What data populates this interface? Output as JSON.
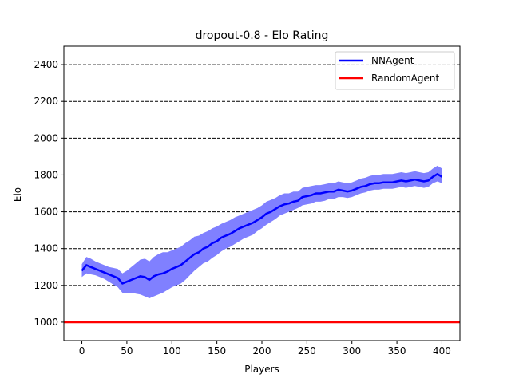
{
  "chart_data": {
    "type": "line",
    "title": "dropout-0.8 - Elo Rating",
    "xlabel": "Players",
    "ylabel": "Elo",
    "xlim": [
      -20,
      420
    ],
    "ylim": [
      900,
      2500
    ],
    "xticks": [
      0,
      50,
      100,
      150,
      200,
      250,
      300,
      350,
      400
    ],
    "yticks": [
      1000,
      1200,
      1400,
      1600,
      1800,
      2000,
      2200,
      2400
    ],
    "grid": {
      "axis": "y",
      "style": "dashed",
      "color": "#000000"
    },
    "legend": {
      "position": "top-right"
    },
    "series": [
      {
        "name": "NNAgent",
        "color": "#0000ff",
        "band_color": "#8080ff",
        "x": [
          0,
          5,
          10,
          15,
          20,
          25,
          30,
          35,
          40,
          45,
          50,
          55,
          60,
          65,
          70,
          75,
          80,
          85,
          90,
          95,
          100,
          105,
          110,
          115,
          120,
          125,
          130,
          135,
          140,
          145,
          150,
          155,
          160,
          165,
          170,
          175,
          180,
          185,
          190,
          195,
          200,
          205,
          210,
          215,
          220,
          225,
          230,
          235,
          240,
          245,
          250,
          255,
          260,
          265,
          270,
          275,
          280,
          285,
          290,
          295,
          300,
          305,
          310,
          315,
          320,
          325,
          330,
          335,
          340,
          345,
          350,
          355,
          360,
          365,
          370,
          375,
          380,
          385,
          390,
          395,
          400
        ],
        "y": [
          1280,
          1310,
          1300,
          1290,
          1280,
          1270,
          1260,
          1250,
          1240,
          1210,
          1220,
          1230,
          1240,
          1250,
          1245,
          1230,
          1250,
          1260,
          1265,
          1275,
          1290,
          1300,
          1310,
          1330,
          1350,
          1370,
          1380,
          1400,
          1410,
          1430,
          1440,
          1460,
          1470,
          1480,
          1495,
          1510,
          1520,
          1530,
          1540,
          1555,
          1570,
          1590,
          1600,
          1615,
          1630,
          1640,
          1645,
          1655,
          1660,
          1680,
          1685,
          1690,
          1700,
          1700,
          1705,
          1710,
          1710,
          1720,
          1715,
          1710,
          1715,
          1725,
          1735,
          1740,
          1750,
          1755,
          1755,
          1760,
          1760,
          1760,
          1765,
          1770,
          1765,
          1770,
          1775,
          1770,
          1765,
          1770,
          1790,
          1805,
          1790
        ],
        "lower": [
          1245,
          1265,
          1260,
          1255,
          1245,
          1235,
          1220,
          1205,
          1190,
          1160,
          1160,
          1160,
          1155,
          1150,
          1140,
          1130,
          1140,
          1150,
          1160,
          1175,
          1190,
          1200,
          1210,
          1230,
          1255,
          1280,
          1300,
          1320,
          1330,
          1350,
          1365,
          1385,
          1400,
          1410,
          1425,
          1440,
          1455,
          1465,
          1475,
          1495,
          1510,
          1530,
          1545,
          1560,
          1580,
          1590,
          1600,
          1610,
          1620,
          1635,
          1640,
          1645,
          1655,
          1655,
          1660,
          1670,
          1670,
          1680,
          1680,
          1675,
          1680,
          1690,
          1700,
          1705,
          1715,
          1720,
          1720,
          1725,
          1725,
          1725,
          1730,
          1735,
          1730,
          1735,
          1740,
          1735,
          1730,
          1735,
          1755,
          1765,
          1755
        ],
        "upper": [
          1315,
          1355,
          1345,
          1330,
          1320,
          1310,
          1300,
          1295,
          1290,
          1265,
          1280,
          1300,
          1320,
          1340,
          1345,
          1330,
          1355,
          1370,
          1380,
          1380,
          1390,
          1400,
          1410,
          1430,
          1445,
          1465,
          1470,
          1485,
          1495,
          1510,
          1520,
          1535,
          1545,
          1555,
          1570,
          1580,
          1590,
          1600,
          1610,
          1620,
          1635,
          1655,
          1665,
          1675,
          1690,
          1700,
          1700,
          1710,
          1710,
          1730,
          1735,
          1740,
          1745,
          1745,
          1750,
          1755,
          1755,
          1765,
          1760,
          1755,
          1760,
          1770,
          1780,
          1785,
          1795,
          1800,
          1800,
          1805,
          1805,
          1805,
          1810,
          1815,
          1810,
          1815,
          1820,
          1815,
          1810,
          1815,
          1835,
          1850,
          1835
        ]
      },
      {
        "name": "RandomAgent",
        "color": "#ff0000",
        "y_constant": 1000
      }
    ]
  }
}
